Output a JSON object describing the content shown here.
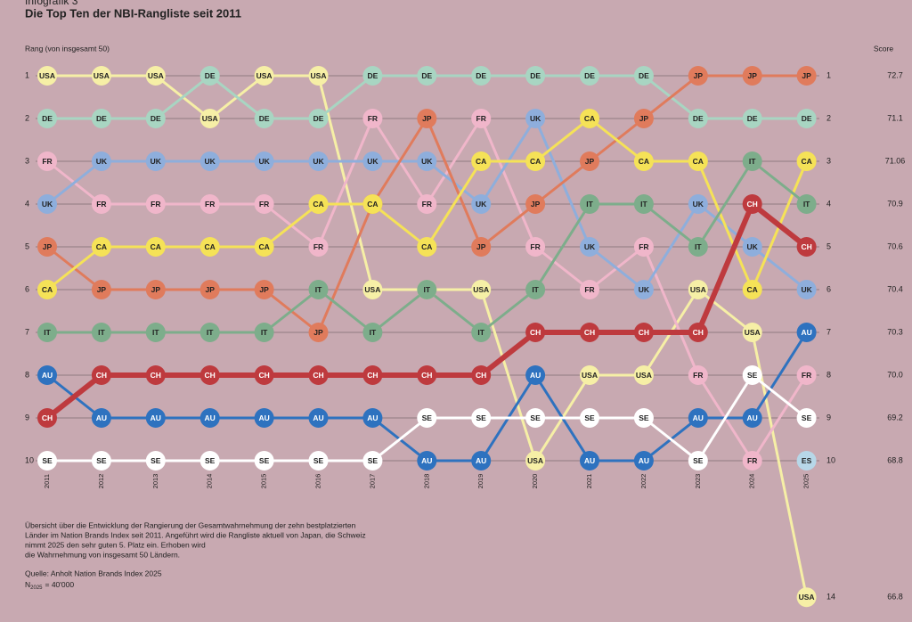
{
  "chart_data": {
    "type": "bump",
    "kicker": "Infografik 3",
    "title": "Die Top Ten der NBI-Rangliste seit 2011",
    "y_label": "Rang (von insgesamt 50)",
    "score_label": "Score",
    "categories": [
      "2011",
      "2012",
      "2013",
      "2014",
      "2015",
      "2016",
      "2017",
      "2018",
      "2019",
      "2020",
      "2021",
      "2022",
      "2023",
      "2024",
      "2025"
    ],
    "ylim": [
      1,
      14
    ],
    "yticks": [
      1,
      2,
      3,
      4,
      5,
      6,
      7,
      8,
      9,
      10
    ],
    "grid": true,
    "series": [
      {
        "name": "USA",
        "color": "#f6efa6",
        "values": [
          1,
          1,
          1,
          2,
          1,
          1,
          6,
          6,
          6,
          10,
          8,
          8,
          6,
          7,
          14
        ]
      },
      {
        "name": "DE",
        "color": "#a8d5c2",
        "values": [
          2,
          2,
          2,
          1,
          2,
          2,
          1,
          1,
          1,
          1,
          1,
          1,
          2,
          2,
          2
        ]
      },
      {
        "name": "FR",
        "color": "#f0b6ca",
        "values": [
          3,
          4,
          4,
          4,
          4,
          5,
          2,
          4,
          2,
          5,
          6,
          5,
          8,
          10,
          8
        ]
      },
      {
        "name": "UK",
        "color": "#8eaedc",
        "values": [
          4,
          3,
          3,
          3,
          3,
          3,
          3,
          3,
          4,
          2,
          5,
          6,
          4,
          5,
          6
        ]
      },
      {
        "name": "JP",
        "color": "#e07b5c",
        "values": [
          5,
          6,
          6,
          6,
          6,
          7,
          4,
          2,
          5,
          4,
          3,
          2,
          1,
          1,
          1
        ]
      },
      {
        "name": "CA",
        "color": "#f5e257",
        "values": [
          6,
          5,
          5,
          5,
          5,
          4,
          4,
          5,
          3,
          3,
          2,
          3,
          3,
          6,
          3
        ]
      },
      {
        "name": "IT",
        "color": "#7dad8b",
        "values": [
          7,
          7,
          7,
          7,
          7,
          6,
          7,
          6,
          7,
          6,
          4,
          4,
          5,
          3,
          4
        ]
      },
      {
        "name": "AU",
        "color": "#2e72bf",
        "values": [
          8,
          9,
          9,
          9,
          9,
          9,
          9,
          10,
          10,
          8,
          10,
          10,
          9,
          9,
          7
        ]
      },
      {
        "name": "CH",
        "color": "#be3a3e",
        "values": [
          9,
          8,
          8,
          8,
          8,
          8,
          8,
          8,
          8,
          7,
          7,
          7,
          7,
          4,
          5
        ]
      },
      {
        "name": "SE",
        "color": "#ffffff",
        "values": [
          10,
          10,
          10,
          10,
          10,
          10,
          10,
          9,
          9,
          9,
          9,
          9,
          10,
          8,
          9
        ]
      },
      {
        "name": "ES",
        "color": "#b7d7e8",
        "values": [
          null,
          null,
          null,
          null,
          null,
          null,
          null,
          null,
          null,
          null,
          null,
          null,
          null,
          null,
          10
        ]
      }
    ],
    "right_ranks": [
      1,
      2,
      3,
      4,
      5,
      6,
      7,
      8,
      9,
      10,
      14
    ],
    "scores": [
      "72.7",
      "71.1",
      "71.06",
      "70.9",
      "70.6",
      "70.4",
      "70.3",
      "70.0",
      "69.2",
      "68.8",
      "66.8"
    ],
    "note": [
      "Übersicht über die Entwicklung der Rangierung der Gesamtwahrnehmung der zehn bestplatzierten",
      "Länder im Nation Brands Index seit 2011. Angeführt wird die Rangliste aktuell von Japan, die Schweiz",
      "nimmt 2025 den sehr guten 5. Platz ein. Erhoben wird",
      "die Wahrnehmung von insgesamt 50 Ländern."
    ],
    "source": "Quelle: Anholt Nation Brands Index 2025",
    "n_symbol": "N",
    "n_sub": "2025",
    "n_value": "= 40'000"
  }
}
